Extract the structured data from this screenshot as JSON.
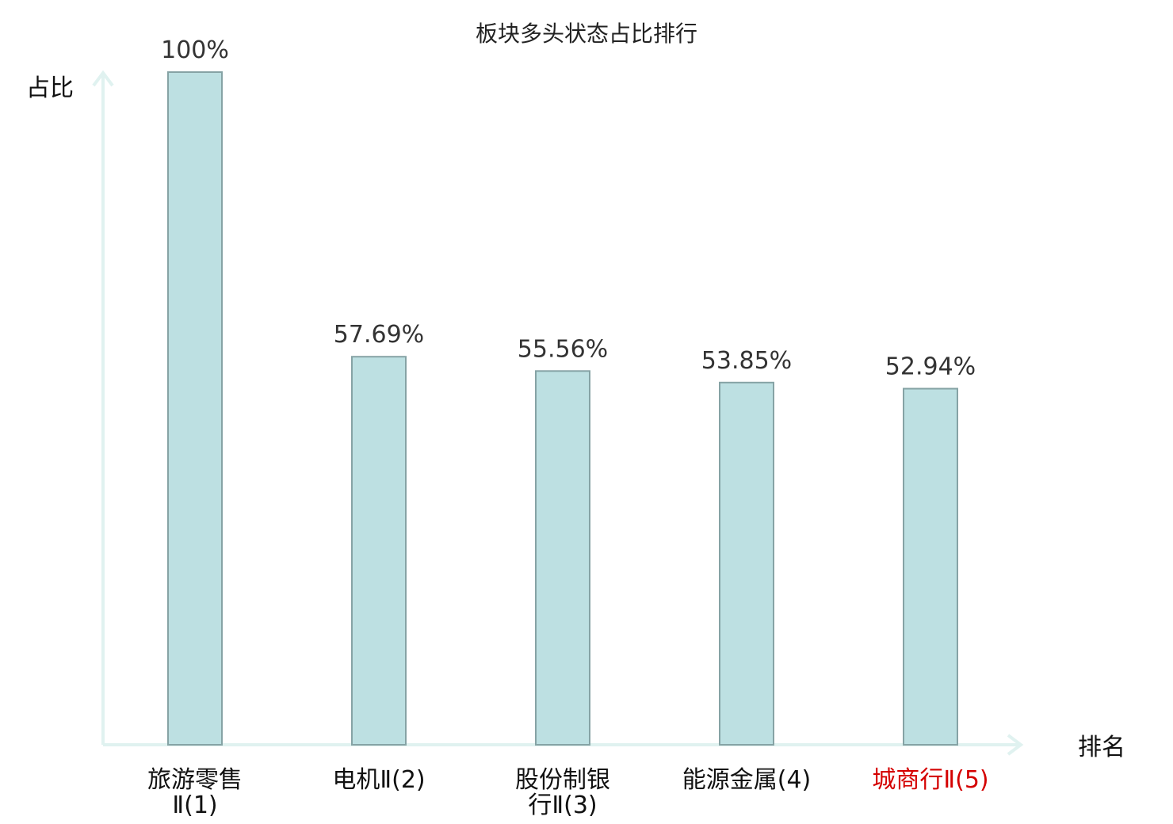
{
  "chart_data": {
    "type": "bar",
    "title": "板块多头状态占比排行",
    "ylabel": "占比",
    "xlabel": "排名",
    "ylim": [
      0,
      100
    ],
    "grid": false,
    "categories": [
      [
        "旅游零售",
        "Ⅱ(1)"
      ],
      [
        "电机Ⅱ(2)"
      ],
      [
        "股份制银",
        "行Ⅱ(3)"
      ],
      [
        "能源金属(4)"
      ],
      [
        "城商行Ⅱ(5)"
      ]
    ],
    "values": [
      100,
      57.69,
      55.56,
      53.85,
      52.94
    ],
    "value_labels": [
      "100%",
      "57.69%",
      "55.56%",
      "53.85%",
      "52.94%"
    ],
    "highlight_index": 4,
    "colors": {
      "bar_fill": "#bde0e2",
      "bar_stroke": "#86a3a5",
      "axis": "#e0f2f0",
      "highlight_label": "#d40000"
    }
  }
}
